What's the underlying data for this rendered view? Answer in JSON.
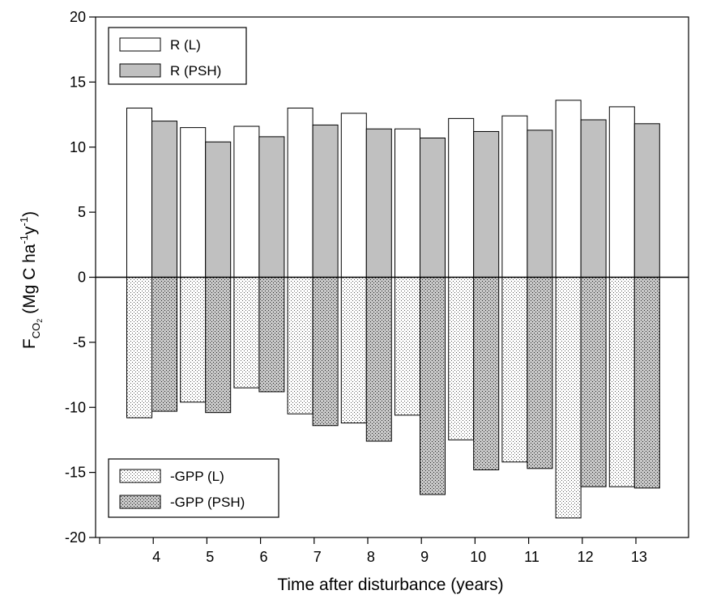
{
  "chart_data": {
    "type": "bar",
    "title": "",
    "xlabel": "Time after disturbance (years)",
    "ylabel": {
      "base": "F",
      "base_sub": "CO",
      "base_subsub": "2",
      "p1": " (Mg C ha",
      "sup1": "-1",
      "p2": "y",
      "sup2": "-1",
      "p3": ")"
    },
    "ylim": [
      -20,
      20
    ],
    "y_ticks": [
      20,
      15,
      10,
      5,
      0,
      -5,
      -10,
      -15,
      -20
    ],
    "categories": [
      "4",
      "5",
      "6",
      "7",
      "8",
      "9",
      "10",
      "11",
      "12",
      "13"
    ],
    "series": [
      {
        "name": "R (L)",
        "fill": "#ffffff",
        "pattern": "none",
        "values": [
          13.0,
          11.5,
          11.6,
          13.0,
          12.6,
          11.4,
          12.2,
          12.4,
          13.6,
          13.1
        ]
      },
      {
        "name": "R (PSH)",
        "fill": "#c0c0c0",
        "pattern": "none",
        "values": [
          12.0,
          10.4,
          10.8,
          11.7,
          11.4,
          10.7,
          11.2,
          11.3,
          12.1,
          11.8
        ]
      },
      {
        "name": "-GPP (L)",
        "fill": "#ffffff",
        "pattern": "dots-light",
        "values": [
          -10.8,
          -9.6,
          -8.5,
          -10.5,
          -11.2,
          -10.6,
          -12.5,
          -14.2,
          -18.5,
          -16.1
        ]
      },
      {
        "name": "-GPP (PSH)",
        "fill": "#c8c8c8",
        "pattern": "dots-dark",
        "values": [
          -10.3,
          -10.4,
          -8.8,
          -11.4,
          -12.6,
          -16.7,
          -14.8,
          -14.7,
          -16.1,
          -16.2
        ]
      }
    ],
    "legends": [
      {
        "placement": "top-left",
        "entries": [
          "R (L)",
          "R (PSH)"
        ]
      },
      {
        "placement": "bottom-left",
        "entries": [
          "-GPP (L)",
          "-GPP (PSH)"
        ]
      }
    ],
    "grid": false,
    "zero_line": true
  }
}
